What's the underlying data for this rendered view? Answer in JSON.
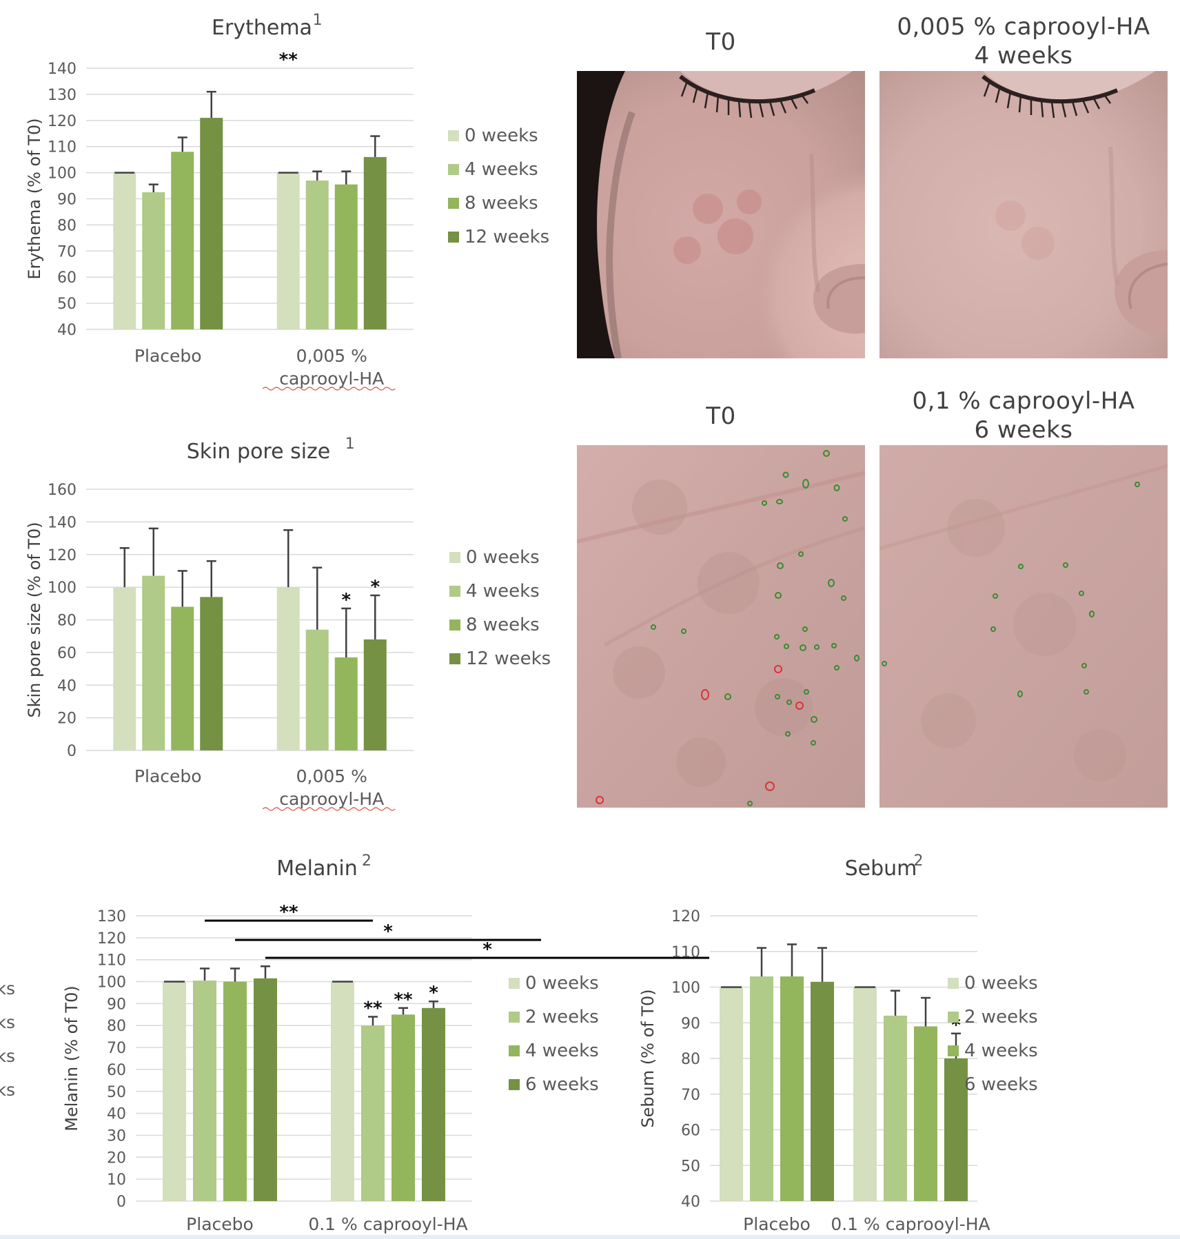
{
  "colors": {
    "w0": "#d3dfbd",
    "w1": "#b0ca87",
    "w2": "#93b55c",
    "w3": "#759143",
    "grid": "#d9d9d9",
    "text": "#404040"
  },
  "photos": {
    "top_left_title": "T0",
    "top_right_title_line1": "0,005 % caprooyl-HA",
    "top_right_title_line2": "4 weeks",
    "bottom_left_title": "T0",
    "bottom_right_title_line1": "0,1 % caprooyl-HA",
    "bottom_right_title_line2": "6 weeks"
  },
  "left_clipped_legend": [
    "ks",
    "ks",
    "ks",
    "ks"
  ],
  "chart_data": [
    {
      "id": "erythema",
      "type": "bar",
      "title": "Erythema",
      "title_sup": "1",
      "ylabel": "Erythema (% of T0)",
      "ylim": [
        40,
        140
      ],
      "ytick_step": 10,
      "categories": [
        "Placebo",
        "0,005 % caprooyl-HA"
      ],
      "series": [
        {
          "name": "0 weeks",
          "values": [
            100,
            100
          ],
          "errors": [
            0,
            0
          ]
        },
        {
          "name": "4 weeks",
          "values": [
            92.5,
            97
          ],
          "errors": [
            3,
            3.5
          ]
        },
        {
          "name": "8 weeks",
          "values": [
            108,
            95.5
          ],
          "errors": [
            5.5,
            5
          ]
        },
        {
          "name": "12 weeks",
          "values": [
            121,
            106
          ],
          "errors": [
            10,
            8
          ]
        }
      ],
      "significance": [
        {
          "label": "**",
          "from": [
            0,
            1
          ],
          "to": [
            1,
            0
          ]
        }
      ],
      "bar_stars": [],
      "legend_position": "right"
    },
    {
      "id": "pore",
      "type": "bar",
      "title": "Skin pore size",
      "title_sup": "1",
      "ylabel": "Skin pore size (% of T0)",
      "ylim": [
        0,
        160
      ],
      "ytick_step": 20,
      "categories": [
        "Placebo",
        "0,005 % caprooyl-HA"
      ],
      "series": [
        {
          "name": "0 weeks",
          "values": [
            100,
            100
          ],
          "errors": [
            24,
            35
          ]
        },
        {
          "name": "4 weeks",
          "values": [
            107,
            74
          ],
          "errors": [
            29,
            38
          ]
        },
        {
          "name": "8 weeks",
          "values": [
            88,
            57
          ],
          "errors": [
            22,
            30
          ]
        },
        {
          "name": "12 weeks",
          "values": [
            94,
            68
          ],
          "errors": [
            22,
            27
          ]
        }
      ],
      "significance": [],
      "bar_stars": [
        {
          "label": "*",
          "category": 1,
          "series": 2
        },
        {
          "label": "*",
          "category": 1,
          "series": 3
        }
      ],
      "legend_position": "right"
    },
    {
      "id": "melanin",
      "type": "bar",
      "title": "Melanin",
      "title_sup": "2",
      "ylabel": "Melanin (% of T0)",
      "ylim": [
        0,
        130
      ],
      "ytick_step": 10,
      "categories": [
        "Placebo",
        "0.1 % caprooyl-HA"
      ],
      "series": [
        {
          "name": "0 weeks",
          "values": [
            100,
            100
          ],
          "errors": [
            0,
            0
          ]
        },
        {
          "name": "2 weeks",
          "values": [
            100.5,
            80
          ],
          "errors": [
            5.5,
            4
          ]
        },
        {
          "name": "4 weeks",
          "values": [
            100,
            85
          ],
          "errors": [
            6,
            3
          ]
        },
        {
          "name": "6 weeks",
          "values": [
            101.5,
            88
          ],
          "errors": [
            5.5,
            3
          ]
        }
      ],
      "significance": [
        {
          "label": "**",
          "from": [
            1,
            0
          ],
          "to": [
            1,
            1
          ]
        },
        {
          "label": "*",
          "from": [
            2,
            0
          ],
          "to": [
            2,
            1
          ]
        },
        {
          "label": "*",
          "from": [
            3,
            0
          ],
          "to": [
            3,
            1
          ]
        }
      ],
      "bar_stars": [
        {
          "label": "**",
          "category": 1,
          "series": 1
        },
        {
          "label": "**",
          "category": 1,
          "series": 2
        },
        {
          "label": "*",
          "category": 1,
          "series": 3
        }
      ],
      "legend_position": "right"
    },
    {
      "id": "sebum",
      "type": "bar",
      "title": "Sebum",
      "title_sup": "2",
      "ylabel": "Sebum (% of T0)",
      "ylim": [
        40,
        120
      ],
      "ytick_step": 10,
      "categories": [
        "Placebo",
        "0.1 % caprooyl-HA"
      ],
      "series": [
        {
          "name": "0 weeks",
          "values": [
            100,
            100
          ],
          "errors": [
            0,
            0
          ]
        },
        {
          "name": "2 weeks",
          "values": [
            103,
            92
          ],
          "errors": [
            8,
            7
          ]
        },
        {
          "name": "4 weeks",
          "values": [
            103,
            89
          ],
          "errors": [
            9,
            8
          ]
        },
        {
          "name": "6 weeks",
          "values": [
            101.5,
            80
          ],
          "errors": [
            9.5,
            7
          ]
        }
      ],
      "significance": [],
      "bar_stars": [
        {
          "label": "*",
          "category": 1,
          "series": 3
        }
      ],
      "legend_position": "right"
    }
  ]
}
